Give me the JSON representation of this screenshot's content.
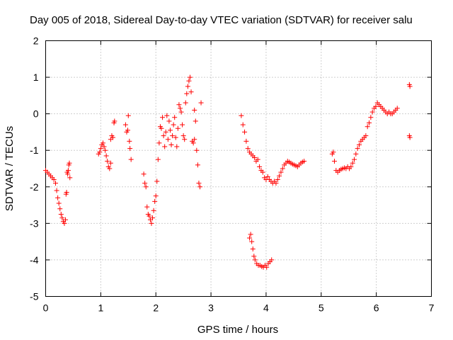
{
  "chart_data": {
    "type": "scatter",
    "title": "Day 005 of 2018, Sidereal Day-to-day VTEC variation (SDTVAR) for receiver salu",
    "xlabel": "GPS time / hours",
    "ylabel": "SDTVAR / TECUs",
    "xlim": [
      0,
      7
    ],
    "ylim": [
      -5,
      2
    ],
    "xticks": [
      0,
      1,
      2,
      3,
      4,
      5,
      6,
      7
    ],
    "yticks": [
      -5,
      -4,
      -3,
      -2,
      -1,
      0,
      1,
      2
    ],
    "grid": true,
    "marker": "plus",
    "color": "#ff0000",
    "series": [
      {
        "name": "SDTVAR",
        "segments": [
          {
            "x": [
              0.0,
              0.03,
              0.06,
              0.09,
              0.12,
              0.15,
              0.18,
              0.2,
              0.22,
              0.24,
              0.26,
              0.28,
              0.3,
              0.32,
              0.34,
              0.36
            ],
            "y": [
              -1.55,
              -1.6,
              -1.65,
              -1.7,
              -1.75,
              -1.8,
              -1.9,
              -2.1,
              -2.3,
              -2.45,
              -2.6,
              -2.75,
              -2.85,
              -2.95,
              -3.0,
              -2.9
            ]
          },
          {
            "x": [
              0.37,
              0.38,
              0.39,
              0.4,
              0.41,
              0.42,
              0.43,
              0.44
            ],
            "y": [
              -2.2,
              -2.15,
              -1.6,
              -1.65,
              -1.55,
              -1.4,
              -1.35,
              -1.75
            ]
          },
          {
            "x": [
              0.96,
              0.98,
              1.0,
              1.02,
              1.04,
              1.06,
              1.08,
              1.1,
              1.12,
              1.14,
              1.16,
              1.18
            ],
            "y": [
              -1.1,
              -1.05,
              -0.95,
              -0.85,
              -0.8,
              -0.9,
              -1.0,
              -1.15,
              -1.3,
              -1.45,
              -1.5,
              -1.35
            ]
          },
          {
            "x": [
              1.18,
              1.2,
              1.22,
              1.24,
              1.25
            ],
            "y": [
              -0.7,
              -0.6,
              -0.65,
              -0.25,
              -0.2
            ]
          },
          {
            "x": [
              1.45,
              1.47,
              1.49,
              1.5,
              1.52,
              1.53,
              1.55
            ],
            "y": [
              -0.3,
              -0.5,
              -0.45,
              -0.05,
              -0.75,
              -0.95,
              -1.25
            ]
          },
          {
            "x": [
              1.78,
              1.8,
              1.82,
              1.84,
              1.86,
              1.88,
              1.9,
              1.92,
              1.94,
              1.96,
              1.98,
              2.0,
              2.02,
              2.04
            ],
            "y": [
              -1.65,
              -1.9,
              -2.0,
              -2.55,
              -2.75,
              -2.8,
              -2.9,
              -3.0,
              -2.85,
              -2.65,
              -2.4,
              -2.25,
              -1.85,
              -1.25
            ]
          },
          {
            "x": [
              2.06,
              2.08,
              2.1,
              2.12,
              2.14,
              2.16,
              2.18,
              2.2,
              2.22,
              2.24,
              2.26,
              2.28,
              2.3,
              2.32,
              2.34,
              2.36,
              2.38,
              2.4
            ],
            "y": [
              -0.8,
              -0.35,
              -0.4,
              -0.1,
              -0.6,
              -0.9,
              -0.5,
              -0.05,
              -0.7,
              -0.2,
              -0.45,
              -0.85,
              -0.6,
              -0.3,
              -0.1,
              -0.65,
              -0.9,
              -0.4
            ]
          },
          {
            "x": [
              2.42,
              2.44,
              2.46,
              2.48,
              2.5,
              2.52,
              2.54,
              2.56,
              2.58,
              2.6,
              2.62,
              2.64,
              2.66,
              2.68,
              2.7
            ],
            "y": [
              0.25,
              0.15,
              0.05,
              -0.3,
              -0.6,
              -0.7,
              0.3,
              0.55,
              0.75,
              0.9,
              1.0,
              0.6,
              -0.75,
              -0.8,
              -0.7
            ]
          },
          {
            "x": [
              2.7,
              2.72,
              2.74,
              2.76,
              2.78,
              2.8,
              2.82
            ],
            "y": [
              0.1,
              -0.2,
              -1.0,
              -1.4,
              -1.9,
              -2.0,
              0.3
            ]
          },
          {
            "x": [
              3.55,
              3.58,
              3.61,
              3.64,
              3.67,
              3.7,
              3.73,
              3.76,
              3.79,
              3.82,
              3.85,
              3.88,
              3.91,
              3.94,
              3.97,
              4.0,
              4.03,
              4.06,
              4.09,
              4.12,
              4.15,
              4.18,
              4.21,
              4.24,
              4.27,
              4.3,
              4.33,
              4.36,
              4.39,
              4.42,
              4.45,
              4.48,
              4.51,
              4.54,
              4.57,
              4.6,
              4.63,
              4.66,
              4.69
            ],
            "y": [
              -0.05,
              -0.3,
              -0.5,
              -0.75,
              -0.95,
              -1.05,
              -1.1,
              -1.15,
              -1.2,
              -1.3,
              -1.25,
              -1.45,
              -1.55,
              -1.6,
              -1.75,
              -1.8,
              -1.72,
              -1.8,
              -1.85,
              -1.9,
              -1.85,
              -1.9,
              -1.8,
              -1.7,
              -1.6,
              -1.5,
              -1.4,
              -1.35,
              -1.3,
              -1.32,
              -1.35,
              -1.38,
              -1.4,
              -1.42,
              -1.45,
              -1.4,
              -1.35,
              -1.32,
              -1.3
            ]
          },
          {
            "x": [
              3.7,
              3.72,
              3.74,
              3.76,
              3.78,
              3.8,
              3.83,
              3.86,
              3.89,
              3.92,
              3.95,
              3.98,
              4.01,
              4.04,
              4.07,
              4.1
            ],
            "y": [
              -3.4,
              -3.3,
              -3.5,
              -3.7,
              -3.9,
              -4.0,
              -4.1,
              -4.15,
              -4.15,
              -4.18,
              -4.2,
              -4.15,
              -4.2,
              -4.1,
              -4.05,
              -4.0
            ]
          },
          {
            "x": [
              5.2,
              5.22,
              5.24,
              5.27,
              5.3,
              5.33,
              5.36,
              5.39,
              5.42,
              5.45,
              5.48,
              5.51,
              5.54,
              5.57,
              5.6,
              5.63,
              5.66,
              5.69,
              5.72,
              5.75,
              5.78,
              5.81,
              5.84,
              5.87,
              5.9,
              5.93,
              5.96,
              5.99,
              6.02,
              6.05,
              6.08,
              6.11,
              6.14,
              6.17,
              6.2,
              6.23,
              6.26,
              6.29,
              6.32,
              6.35,
              6.38
            ],
            "y": [
              -1.1,
              -1.05,
              -1.3,
              -1.55,
              -1.6,
              -1.55,
              -1.52,
              -1.5,
              -1.48,
              -1.5,
              -1.45,
              -1.5,
              -1.45,
              -1.35,
              -1.25,
              -1.1,
              -0.95,
              -0.85,
              -0.75,
              -0.7,
              -0.65,
              -0.6,
              -0.35,
              -0.25,
              -0.1,
              0.05,
              0.15,
              0.2,
              0.3,
              0.25,
              0.2,
              0.15,
              0.1,
              0.05,
              0.0,
              0.05,
              0.0,
              0.0,
              0.05,
              0.1,
              0.15
            ]
          },
          {
            "x": [
              6.6,
              6.61,
              6.6,
              6.61
            ],
            "y": [
              0.8,
              0.75,
              -0.6,
              -0.65
            ]
          }
        ]
      }
    ]
  }
}
